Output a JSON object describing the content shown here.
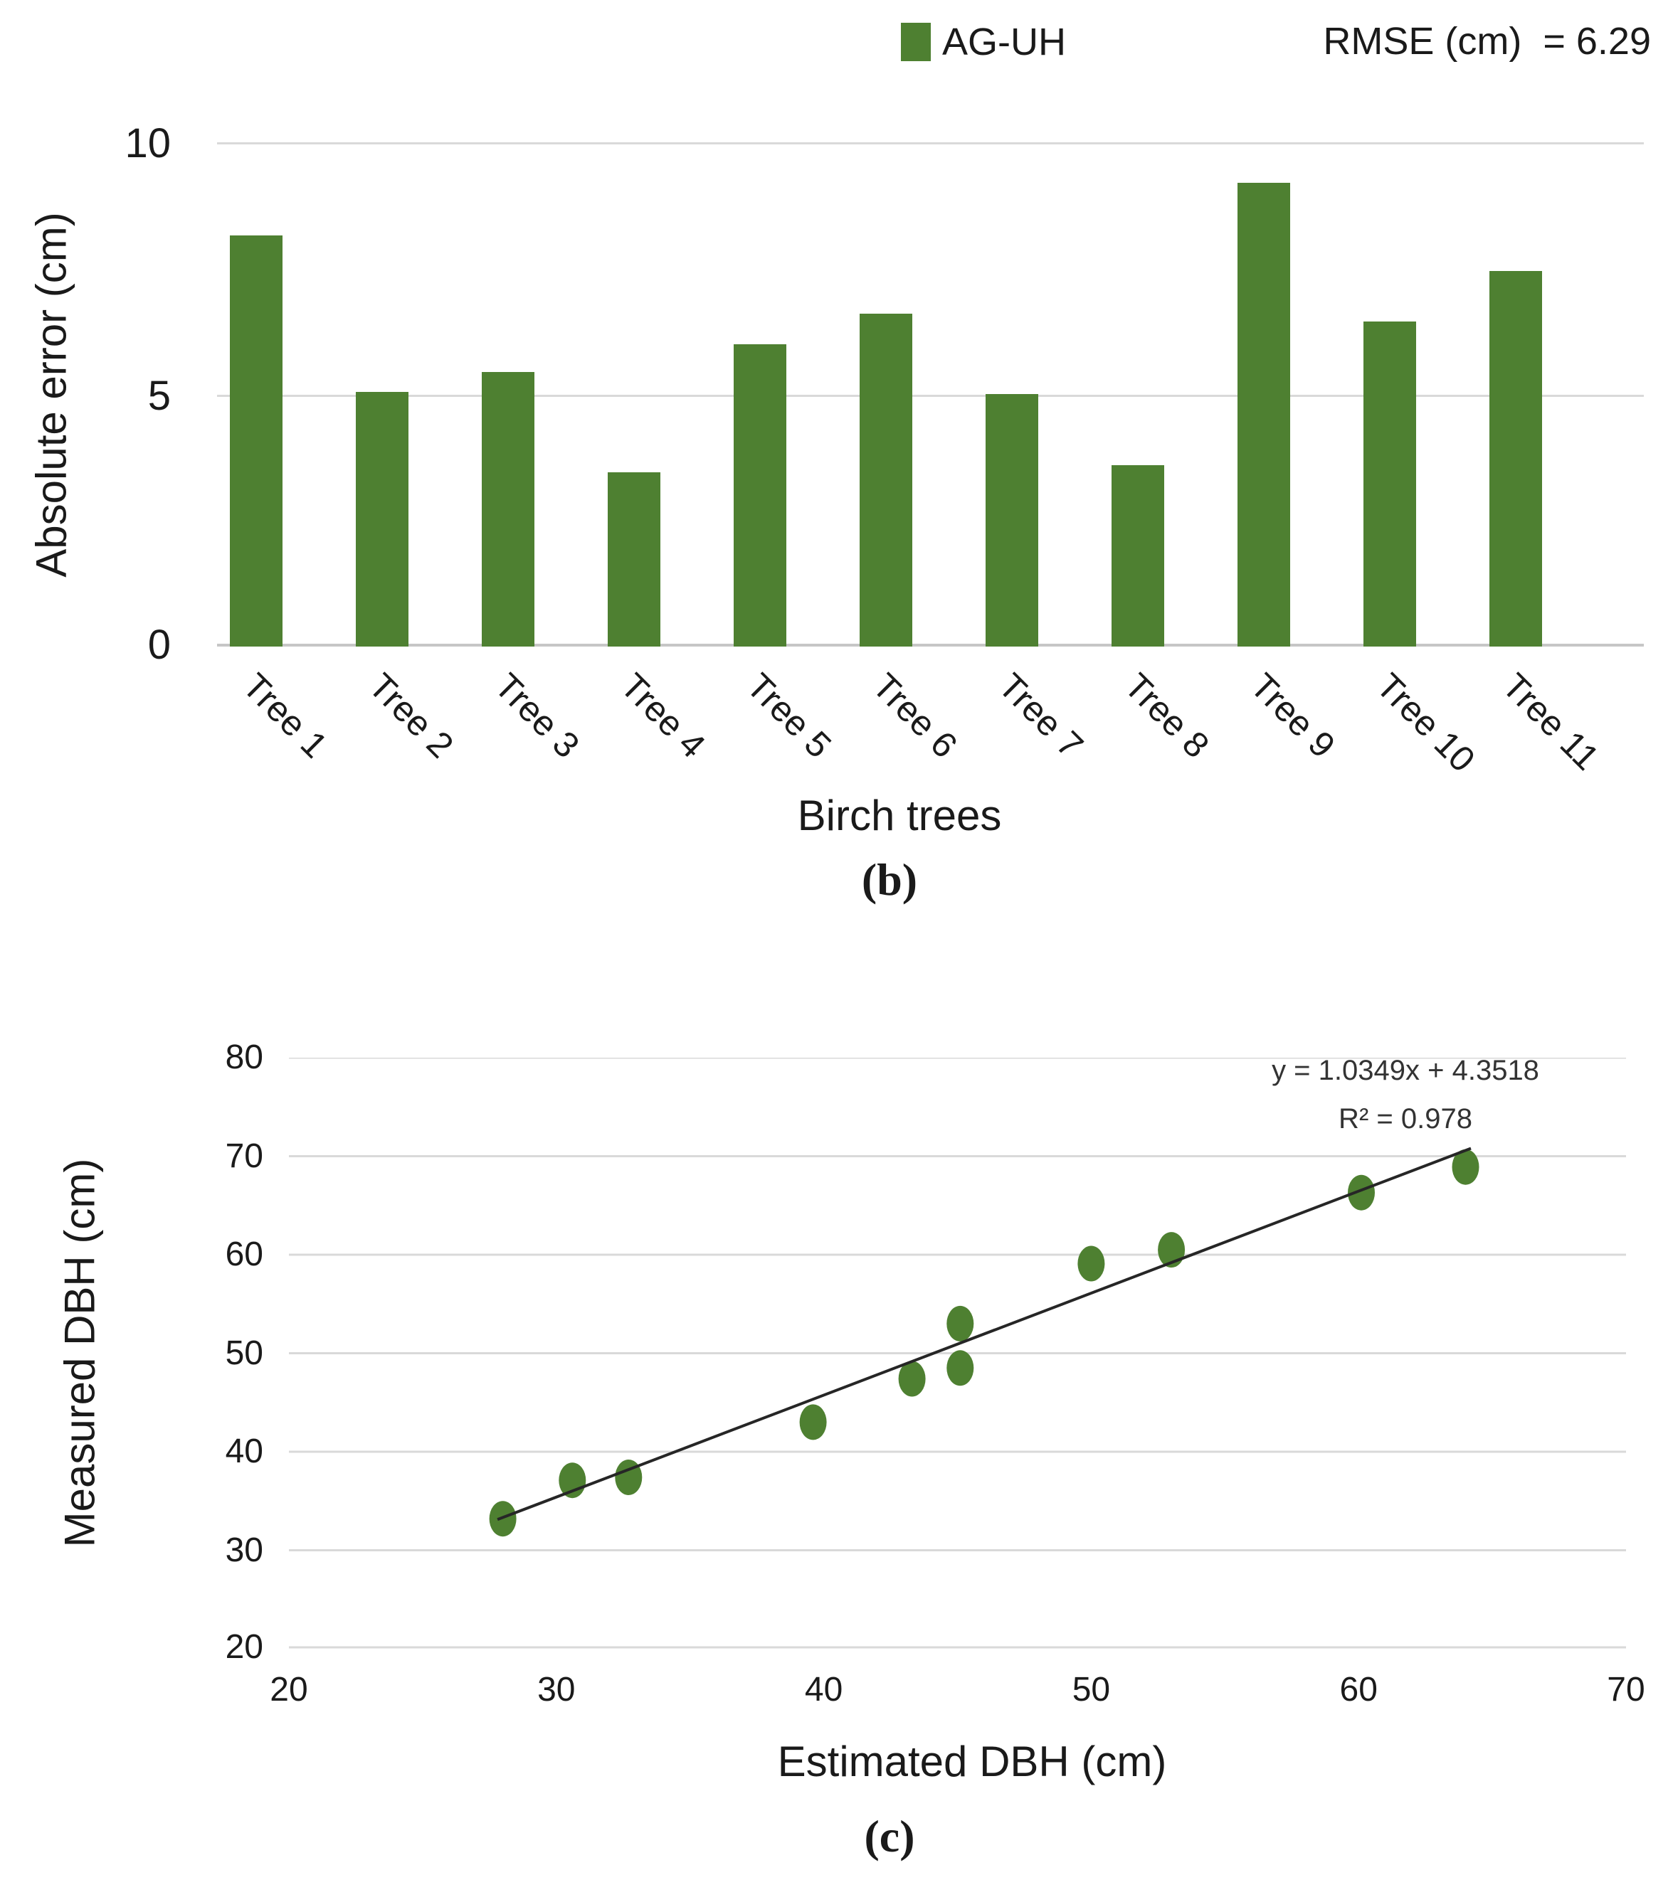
{
  "colors": {
    "accent_green": "#4e8031",
    "gridline": "#d9d9d9",
    "baseline": "#c6c6c6",
    "trendline": "#262626",
    "text": "#1a1a1a"
  },
  "chart_data": [
    {
      "id": "b",
      "type": "bar",
      "caption": "(b)",
      "legend": [
        {
          "label": "AG-UH",
          "color": "#4e8031"
        }
      ],
      "legend_position": "top-center",
      "annotation": "RMSE (cm)  = 6.29",
      "xlabel": "Birch trees",
      "ylabel": "Absolute error (cm)",
      "categories": [
        "Tree 1",
        "Tree 2",
        "Tree 3",
        "Tree 4",
        "Tree 5",
        "Tree 6",
        "Tree 7",
        "Tree 8",
        "Tree 9",
        "Tree 10",
        "Tree 11"
      ],
      "values": [
        8.15,
        5.05,
        5.45,
        3.45,
        6.0,
        6.6,
        5.0,
        3.6,
        9.2,
        6.45,
        7.45
      ],
      "ylim": [
        0,
        10
      ],
      "yticks": [
        0,
        5,
        10
      ],
      "grid": "horizontal",
      "bar_color": "#4e8031",
      "xtick_rotation_deg": 45
    },
    {
      "id": "c",
      "type": "scatter",
      "caption": "(c)",
      "xlabel": "Estimated DBH (cm)",
      "ylabel": "Measured DBH (cm)",
      "xlim": [
        20,
        70
      ],
      "ylim": [
        20,
        80
      ],
      "xticks": [
        20,
        30,
        40,
        50,
        60,
        70
      ],
      "yticks": [
        20,
        30,
        40,
        50,
        60,
        70,
        80
      ],
      "grid": "horizontal",
      "point_color": "#4e8031",
      "points": [
        [
          28.0,
          33.2
        ],
        [
          30.6,
          37.1
        ],
        [
          32.7,
          37.4
        ],
        [
          39.6,
          43.0
        ],
        [
          43.3,
          47.4
        ],
        [
          45.1,
          48.5
        ],
        [
          45.1,
          53.0
        ],
        [
          50.0,
          59.1
        ],
        [
          53.0,
          60.5
        ],
        [
          60.1,
          66.3
        ],
        [
          64.0,
          68.9
        ]
      ],
      "trendline": {
        "equation": "y = 1.0349x + 4.3518",
        "r_squared_label": "R² = 0.978",
        "slope": 1.0349,
        "intercept": 4.3518,
        "x_start": 27.8,
        "x_end": 64.2,
        "color": "#262626"
      }
    }
  ]
}
